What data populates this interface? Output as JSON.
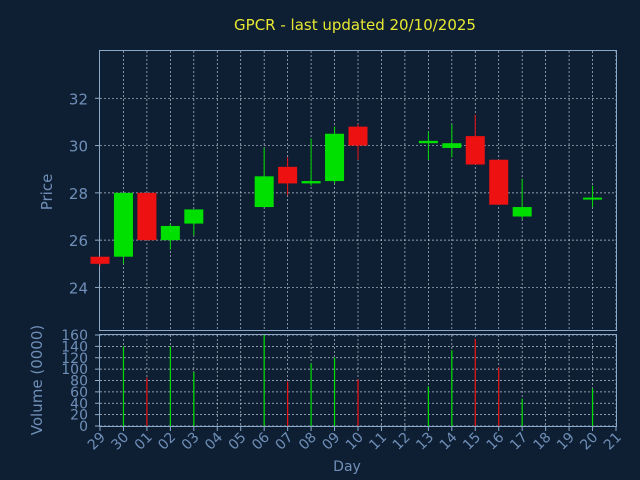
{
  "chart_data": [
    {
      "type": "candlestick",
      "title": "GPCR - last updated 20/10/2025",
      "ylabel": "Price",
      "ylim": [
        22.2,
        34.0
      ],
      "yticks": [
        24,
        26,
        28,
        30,
        32
      ],
      "grid": true,
      "x": [
        "29",
        "30",
        "01",
        "02",
        "03",
        "04",
        "05",
        "06",
        "07",
        "08",
        "09",
        "10",
        "11",
        "12",
        "13",
        "14",
        "15",
        "16",
        "17",
        "18",
        "19",
        "20",
        "21"
      ],
      "candles": [
        {
          "x": "29",
          "open": 25.3,
          "high": 25.3,
          "low": 24.9,
          "close": 25.0
        },
        {
          "x": "30",
          "open": 25.3,
          "high": 28.0,
          "low": 25.0,
          "close": 28.0
        },
        {
          "x": "01",
          "open": 28.0,
          "high": 28.0,
          "low": 26.0,
          "close": 26.0
        },
        {
          "x": "02",
          "open": 26.0,
          "high": 26.7,
          "low": 25.6,
          "close": 26.6
        },
        {
          "x": "03",
          "open": 26.7,
          "high": 27.3,
          "low": 26.2,
          "close": 27.3
        },
        {
          "x": "06",
          "open": 27.4,
          "high": 29.9,
          "low": 27.4,
          "close": 28.7
        },
        {
          "x": "07",
          "open": 29.1,
          "high": 29.5,
          "low": 27.9,
          "close": 28.4
        },
        {
          "x": "08",
          "open": 28.4,
          "high": 30.3,
          "low": 28.3,
          "close": 28.5
        },
        {
          "x": "09",
          "open": 28.5,
          "high": 30.8,
          "low": 28.4,
          "close": 30.5
        },
        {
          "x": "10",
          "open": 30.8,
          "high": 30.9,
          "low": 29.4,
          "close": 30.0
        },
        {
          "x": "13",
          "open": 30.1,
          "high": 30.6,
          "low": 29.4,
          "close": 30.2
        },
        {
          "x": "14",
          "open": 29.9,
          "high": 30.9,
          "low": 29.5,
          "close": 30.1
        },
        {
          "x": "15",
          "open": 30.4,
          "high": 31.3,
          "low": 29.2,
          "close": 29.2
        },
        {
          "x": "16",
          "open": 29.4,
          "high": 29.4,
          "low": 27.5,
          "close": 27.5
        },
        {
          "x": "17",
          "open": 27.0,
          "high": 28.6,
          "low": 26.9,
          "close": 27.4
        },
        {
          "x": "20",
          "open": 27.8,
          "high": 28.3,
          "low": 27.4,
          "close": 27.8
        }
      ]
    },
    {
      "type": "bar",
      "ylabel": "Volume (0000)",
      "xlabel": "Day",
      "ylim": [
        0,
        160
      ],
      "yticks": [
        0,
        20,
        40,
        60,
        80,
        100,
        120,
        140,
        160
      ],
      "grid": true,
      "categories": [
        "30",
        "01",
        "02",
        "03",
        "06",
        "07",
        "08",
        "09",
        "10",
        "13",
        "14",
        "15",
        "16",
        "17",
        "20"
      ],
      "values": [
        140,
        85,
        140,
        95,
        160,
        78,
        110,
        120,
        82,
        70,
        133,
        153,
        103,
        48,
        66
      ]
    }
  ],
  "colors": {
    "background": "#0f1f33",
    "axis": "#8aa8c8",
    "tick_text": "#6f8fb8",
    "title": "#e8e832",
    "up": "#00e000",
    "down": "#ee1111",
    "grid": "#b8c4d2"
  }
}
